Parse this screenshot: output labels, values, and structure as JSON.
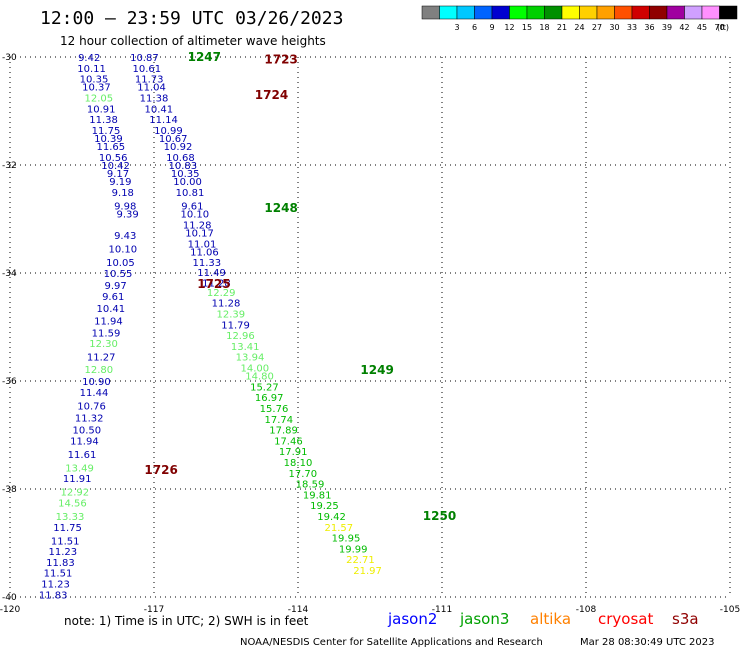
{
  "header": {
    "title": "12:00 – 23:59 UTC 03/26/2023",
    "subtitle": "12 hour collection of altimeter wave heights"
  },
  "legend": {
    "unit": "(ft)",
    "bins": [
      {
        "label": "",
        "color": "#808080"
      },
      {
        "label": "3",
        "color": "#00ffff"
      },
      {
        "label": "6",
        "color": "#00c8ff"
      },
      {
        "label": "9",
        "color": "#0064ff"
      },
      {
        "label": "12",
        "color": "#0000d0"
      },
      {
        "label": "15",
        "color": "#00ff00"
      },
      {
        "label": "18",
        "color": "#00d000"
      },
      {
        "label": "21",
        "color": "#009000"
      },
      {
        "label": "24",
        "color": "#ffff00"
      },
      {
        "label": "27",
        "color": "#ffd000"
      },
      {
        "label": "30",
        "color": "#ffa000"
      },
      {
        "label": "33",
        "color": "#ff5000"
      },
      {
        "label": "36",
        "color": "#d00000"
      },
      {
        "label": "39",
        "color": "#900000"
      },
      {
        "label": "42",
        "color": "#a000a0"
      },
      {
        "label": "45",
        "color": "#d0a0ff"
      },
      {
        "label": "70",
        "color": "#ff90ff"
      },
      {
        "label": "",
        "color": "#000000"
      }
    ]
  },
  "footer": {
    "note": "note:  1) Time is in UTC;  2) SWH is in feet",
    "satellites": [
      {
        "name": "jason2",
        "color": "#0000ff"
      },
      {
        "name": "jason3",
        "color": "#00a000"
      },
      {
        "name": "altika",
        "color": "#ff8000"
      },
      {
        "name": "cryosat",
        "color": "#ff0000"
      },
      {
        "name": "s3a",
        "color": "#900000"
      }
    ],
    "credit": "NOAA/NESDIS Center for Satellite Applications and Research",
    "timestamp": "Mar 28 08:30:49 UTC 2023"
  },
  "chart_data": {
    "type": "scatter",
    "title": "12:00 – 23:59 UTC 03/26/2023",
    "xlabel": "",
    "ylabel": "",
    "xlim": [
      -120,
      -105
    ],
    "ylim": [
      -40,
      -30
    ],
    "xticks": [
      -120,
      -117,
      -114,
      -111,
      -108,
      -105
    ],
    "xtick_labels": [
      "-120",
      "-117",
      "-114",
      "-111",
      "-108",
      "-105"
    ],
    "yticks": [
      -30,
      -32,
      -34,
      -36,
      -38,
      -40
    ],
    "ytick_labels": [
      "-30",
      "-32",
      "-34",
      "-36",
      "-38",
      "-40"
    ],
    "grid": true,
    "color_scale": [
      {
        "max": 12,
        "color": "#0000b0"
      },
      {
        "max": 15,
        "color": "#66ee66"
      },
      {
        "max": 21,
        "color": "#00bb00"
      },
      {
        "max": 99,
        "color": "#eeee00"
      }
    ],
    "tracks": [
      {
        "lon": [
          -117.2,
          -117.15,
          -117.1,
          -117.05,
          -117.0,
          -116.9,
          -116.8,
          -116.7,
          -116.6,
          -116.5,
          -116.45,
          -116.4,
          -116.35,
          -116.3,
          -116.25,
          -116.2,
          -116.15,
          -116.1,
          -116.05,
          -116.0,
          -115.95
        ],
        "lat": [
          -30.0,
          -30.2,
          -30.4,
          -30.55,
          -30.75,
          -30.95,
          -31.15,
          -31.35,
          -31.5,
          -31.65,
          -31.85,
          -32.0,
          -32.15,
          -32.3,
          -32.5,
          -32.75,
          -32.9,
          -33.1,
          -33.25,
          -33.45,
          -33.6
        ],
        "swh": [
          10.87,
          10.61,
          11.73,
          11.04,
          11.38,
          10.41,
          11.14,
          10.99,
          10.67,
          10.92,
          10.68,
          10.83,
          10.35,
          10.0,
          10.81,
          9.61,
          10.1,
          11.28,
          10.17,
          11.01,
          11.06
        ]
      },
      {
        "lon": [
          -115.9,
          -115.8,
          -115.7,
          -115.6,
          -115.5,
          -115.4,
          -115.3,
          -115.2,
          -115.1,
          -115.0,
          -114.9,
          -114.8,
          -114.7,
          -114.6,
          -114.5,
          -114.4,
          -114.3,
          -114.2,
          -114.1,
          -114.0
        ],
        "lat": [
          -33.8,
          -33.98,
          -34.18,
          -34.35,
          -34.55,
          -34.75,
          -34.95,
          -35.15,
          -35.35,
          -35.55,
          -35.75,
          -35.9,
          -36.1,
          -36.3,
          -36.5,
          -36.7,
          -36.9,
          -37.1,
          -37.3,
          -37.5
        ],
        "swh": [
          11.33,
          11.49,
          11.28,
          12.29,
          11.28,
          12.39,
          11.79,
          12.96,
          13.41,
          13.94,
          14.0,
          14.8,
          15.27,
          16.97,
          15.76,
          17.74,
          17.89,
          17.46,
          17.91,
          18.1
        ]
      },
      {
        "lon": [
          -113.9,
          -113.75,
          -113.6,
          -113.45,
          -113.3,
          -113.15,
          -113.0,
          -112.85,
          -112.7,
          -112.55
        ],
        "lat": [
          -37.7,
          -37.9,
          -38.1,
          -38.3,
          -38.5,
          -38.7,
          -38.9,
          -39.1,
          -39.3,
          -39.5
        ],
        "swh": [
          17.7,
          18.59,
          19.81,
          19.25,
          19.42,
          21.57,
          19.95,
          19.99,
          22.71,
          21.97
        ]
      },
      {
        "lon": [
          -118.35,
          -118.3,
          -118.25,
          -118.2,
          -118.15,
          -118.1,
          -118.05,
          -118.0,
          -117.95,
          -117.9,
          -117.85,
          -117.8,
          -117.75,
          -117.7,
          -117.65,
          -117.6,
          -117.55
        ],
        "lat": [
          -30.0,
          -30.2,
          -30.4,
          -30.55,
          -30.75,
          -30.95,
          -31.15,
          -31.35,
          -31.5,
          -31.65,
          -31.85,
          -32.0,
          -32.15,
          -32.3,
          -32.5,
          -32.75,
          -32.9
        ],
        "swh": [
          9.42,
          10.11,
          10.35,
          10.37,
          12.05,
          10.91,
          11.38,
          11.75,
          10.39,
          11.65,
          10.56,
          10.42,
          9.17,
          9.19,
          9.18,
          9.98,
          9.39
        ]
      },
      {
        "lon": [
          -117.6,
          -117.65,
          -117.7,
          -117.75,
          -117.8,
          -117.85,
          -117.9,
          -117.95,
          -118.0,
          -118.05,
          -118.1,
          -118.15,
          -118.2,
          -118.25,
          -118.3,
          -118.35,
          -118.4,
          -118.45,
          -118.5,
          -118.55,
          -118.6,
          -118.65,
          -118.7,
          -118.75,
          -118.8,
          -118.85,
          -118.9,
          -118.95,
          -119.0,
          -119.05,
          -119.1
        ],
        "lat": [
          -33.3,
          -33.55,
          -33.8,
          -34.0,
          -34.22,
          -34.43,
          -34.65,
          -34.88,
          -35.1,
          -35.3,
          -35.55,
          -35.78,
          -36.0,
          -36.2,
          -36.45,
          -36.68,
          -36.9,
          -37.1,
          -37.35,
          -37.6,
          -37.8,
          -38.05,
          -38.25,
          -38.5,
          -38.7,
          -38.95,
          -39.15,
          -39.35,
          -39.55,
          -39.75,
          -39.95
        ],
        "swh": [
          9.43,
          10.1,
          10.05,
          10.55,
          9.97,
          9.61,
          10.41,
          11.94,
          11.59,
          12.3,
          11.27,
          12.8,
          10.9,
          11.44,
          10.76,
          11.32,
          10.5,
          11.94,
          11.61,
          13.49,
          11.91,
          12.92,
          14.56,
          13.33,
          11.75,
          11.51,
          11.23,
          11.83,
          11.51,
          11.23,
          11.83
        ]
      }
    ],
    "passes": [
      {
        "label": "1247",
        "lon": -116.3,
        "lat": -30.0,
        "color": "#008000"
      },
      {
        "label": "1723",
        "lon": -114.7,
        "lat": -30.05,
        "color": "#800000"
      },
      {
        "label": "1724",
        "lon": -114.9,
        "lat": -30.7,
        "color": "#800000"
      },
      {
        "label": "1248",
        "lon": -114.7,
        "lat": -32.8,
        "color": "#008000"
      },
      {
        "label": "1725",
        "lon": -116.1,
        "lat": -34.2,
        "color": "#800000"
      },
      {
        "label": "1249",
        "lon": -112.7,
        "lat": -35.8,
        "color": "#008000"
      },
      {
        "label": "1726",
        "lon": -117.2,
        "lat": -37.65,
        "color": "#800000"
      },
      {
        "label": "1250",
        "lon": -111.4,
        "lat": -38.5,
        "color": "#008000"
      }
    ]
  }
}
